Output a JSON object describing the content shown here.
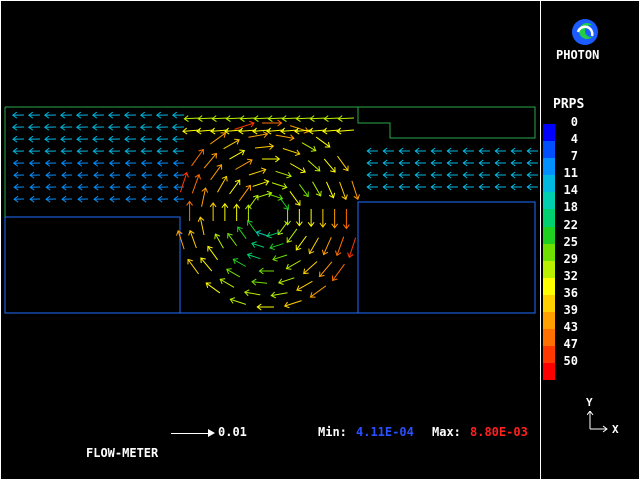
{
  "app": {
    "logo_text": "PHOTON",
    "model_name": "FLOW-METER"
  },
  "legend": {
    "title": "PRPS",
    "labels": [
      "0",
      "4",
      "7",
      "11",
      "14",
      "18",
      "22",
      "25",
      "29",
      "32",
      "36",
      "39",
      "43",
      "47",
      "50"
    ],
    "colors": [
      "#0000ff",
      "#0050ff",
      "#0090ff",
      "#00b8e0",
      "#00d0b0",
      "#00d070",
      "#20d020",
      "#70e000",
      "#b8f000",
      "#ffff00",
      "#ffd000",
      "#ffa000",
      "#ff7000",
      "#ff3800",
      "#ff0000"
    ]
  },
  "scale": {
    "value": "0.01"
  },
  "range": {
    "min_label": "Min:",
    "min_value": "4.11E-04",
    "max_label": "Max:",
    "max_value": "8.80E-03"
  },
  "axes": {
    "y": "Y",
    "x": "X"
  },
  "colors": {
    "background": "#000000",
    "geometry": "#2aa84a",
    "min": "#2b50ff",
    "max": "#ff2020"
  }
}
